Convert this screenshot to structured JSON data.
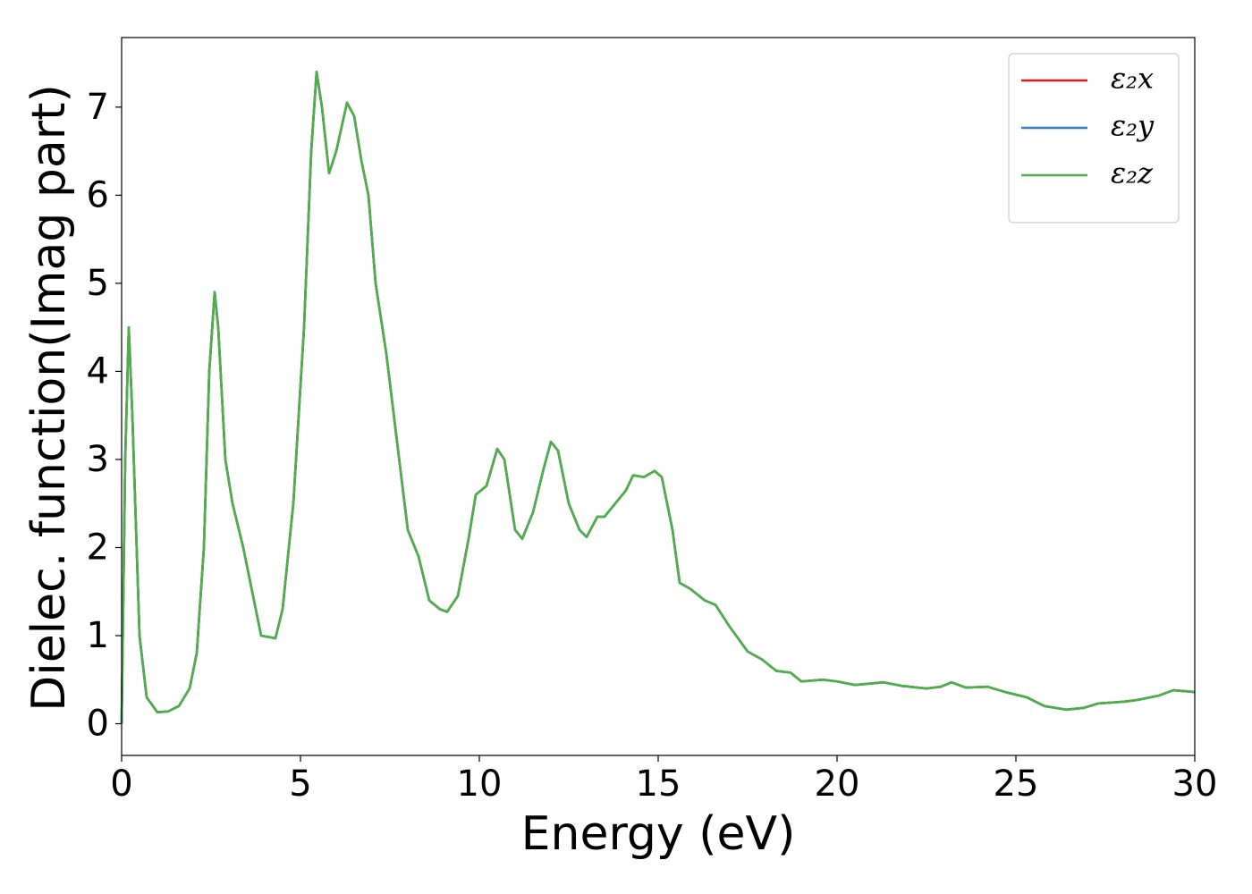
{
  "chart_data": {
    "type": "line",
    "xlabel": "Energy (eV)",
    "ylabel": "Dielec. function(Imag part)",
    "x": [
      0,
      0.1,
      0.2,
      0.3,
      0.5,
      0.7,
      1,
      1.3,
      1.6,
      1.9,
      2.1,
      2.3,
      2.45,
      2.6,
      2.7,
      2.9,
      3.1,
      3.4,
      3.7,
      3.9,
      4.3,
      4.5,
      4.8,
      5.1,
      5.3,
      5.45,
      5.6,
      5.8,
      6,
      6.3,
      6.5,
      6.7,
      6.9,
      7.1,
      7.4,
      7.7,
      8,
      8.3,
      8.6,
      8.9,
      9.1,
      9.4,
      9.7,
      9.9,
      10.2,
      10.5,
      10.7,
      11,
      11.2,
      11.5,
      11.8,
      12,
      12.2,
      12.5,
      12.8,
      13,
      13.3,
      13.5,
      13.8,
      14.1,
      14.3,
      14.6,
      14.9,
      15.1,
      15.4,
      15.6,
      15.9,
      16.3,
      16.6,
      17,
      17.5,
      17.9,
      18.3,
      18.7,
      19,
      19.6,
      20,
      20.5,
      21.3,
      21.8,
      22.5,
      22.9,
      23.2,
      23.6,
      24.2,
      24.7,
      25.3,
      25.8,
      26.4,
      26.9,
      27.3,
      28,
      28.4,
      29,
      29.4,
      30
    ],
    "series": [
      {
        "name": "ε₂x",
        "color": "#e41a1c",
        "values": [
          0,
          3,
          4.5,
          3.5,
          1,
          0.3,
          0.13,
          0.14,
          0.2,
          0.4,
          0.8,
          2,
          4,
          4.9,
          4.5,
          3,
          2.5,
          2,
          1.4,
          1,
          0.97,
          1.3,
          2.5,
          4.5,
          6.5,
          7.4,
          7,
          6.25,
          6.5,
          7.05,
          6.9,
          6.4,
          6,
          5,
          4.2,
          3.2,
          2.2,
          1.9,
          1.4,
          1.3,
          1.27,
          1.45,
          2.1,
          2.6,
          2.7,
          3.12,
          3,
          2.2,
          2.1,
          2.4,
          2.9,
          3.2,
          3.1,
          2.5,
          2.2,
          2.12,
          2.35,
          2.35,
          2.5,
          2.65,
          2.82,
          2.8,
          2.87,
          2.8,
          2.2,
          1.6,
          1.53,
          1.4,
          1.35,
          1.1,
          0.82,
          0.73,
          0.6,
          0.58,
          0.48,
          0.5,
          0.48,
          0.44,
          0.47,
          0.43,
          0.4,
          0.42,
          0.47,
          0.41,
          0.42,
          0.36,
          0.3,
          0.2,
          0.16,
          0.18,
          0.23,
          0.25,
          0.27,
          0.32,
          0.38,
          0.36
        ]
      },
      {
        "name": "ε₂y",
        "color": "#377eb8",
        "values": [
          0,
          3,
          4.5,
          3.5,
          1,
          0.3,
          0.13,
          0.14,
          0.2,
          0.4,
          0.8,
          2,
          4,
          4.9,
          4.5,
          3,
          2.5,
          2,
          1.4,
          1,
          0.97,
          1.3,
          2.5,
          4.5,
          6.5,
          7.4,
          7,
          6.25,
          6.5,
          7.05,
          6.9,
          6.4,
          6,
          5,
          4.2,
          3.2,
          2.2,
          1.9,
          1.4,
          1.3,
          1.27,
          1.45,
          2.1,
          2.6,
          2.7,
          3.12,
          3,
          2.2,
          2.1,
          2.4,
          2.9,
          3.2,
          3.1,
          2.5,
          2.2,
          2.12,
          2.35,
          2.35,
          2.5,
          2.65,
          2.82,
          2.8,
          2.87,
          2.8,
          2.2,
          1.6,
          1.53,
          1.4,
          1.35,
          1.1,
          0.82,
          0.73,
          0.6,
          0.58,
          0.48,
          0.5,
          0.48,
          0.44,
          0.47,
          0.43,
          0.4,
          0.42,
          0.47,
          0.41,
          0.42,
          0.36,
          0.3,
          0.2,
          0.16,
          0.18,
          0.23,
          0.25,
          0.27,
          0.32,
          0.38,
          0.36
        ]
      },
      {
        "name": "ε₂z",
        "color": "#4daf4a",
        "values": [
          0,
          3,
          4.5,
          3.5,
          1,
          0.3,
          0.13,
          0.14,
          0.2,
          0.4,
          0.8,
          2,
          4,
          4.9,
          4.5,
          3,
          2.5,
          2,
          1.4,
          1,
          0.97,
          1.3,
          2.5,
          4.5,
          6.5,
          7.4,
          7,
          6.25,
          6.5,
          7.05,
          6.9,
          6.4,
          6,
          5,
          4.2,
          3.2,
          2.2,
          1.9,
          1.4,
          1.3,
          1.27,
          1.45,
          2.1,
          2.6,
          2.7,
          3.12,
          3,
          2.2,
          2.1,
          2.4,
          2.9,
          3.2,
          3.1,
          2.5,
          2.2,
          2.12,
          2.35,
          2.35,
          2.5,
          2.65,
          2.82,
          2.8,
          2.87,
          2.8,
          2.2,
          1.6,
          1.53,
          1.4,
          1.35,
          1.1,
          0.82,
          0.73,
          0.6,
          0.58,
          0.48,
          0.5,
          0.48,
          0.44,
          0.47,
          0.43,
          0.4,
          0.42,
          0.47,
          0.41,
          0.42,
          0.36,
          0.3,
          0.2,
          0.16,
          0.18,
          0.23,
          0.25,
          0.27,
          0.32,
          0.38,
          0.36
        ]
      }
    ],
    "xlim": [
      0,
      30
    ],
    "xticks": [
      0,
      5,
      10,
      15,
      20,
      25,
      30
    ],
    "ylim": [
      -0.36,
      7.79
    ],
    "yticks": [
      0,
      1,
      2,
      3,
      4,
      5,
      6,
      7
    ],
    "grid": false,
    "legend": "upper right"
  }
}
